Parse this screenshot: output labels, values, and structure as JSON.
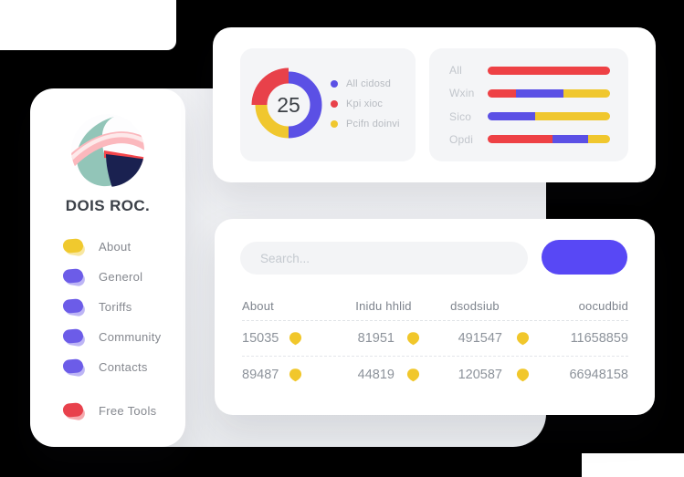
{
  "brand": {
    "name": "DOIS ROC."
  },
  "sidebar": {
    "items": [
      {
        "label": "About",
        "color": "#f0c92e"
      },
      {
        "label": "Generol",
        "color": "#6c5ce8"
      },
      {
        "label": "Toriffs",
        "color": "#6c5ce8"
      },
      {
        "label": "Community",
        "color": "#6c5ce8"
      },
      {
        "label": "Contacts",
        "color": "#6c5ce8"
      }
    ],
    "footer_item": {
      "label": "Free Tools",
      "color": "#e8414c"
    }
  },
  "donut_card": {
    "value": "25",
    "segments": [
      {
        "label": "All cidosd",
        "color": "#5b50e5",
        "pct": 50
      },
      {
        "label": "Kpi xioc",
        "color": "#e8414a",
        "pct": 25
      },
      {
        "label": "Pcifn doinvi",
        "color": "#f0c72e",
        "pct": 25
      }
    ]
  },
  "bars_card": {
    "rows": [
      {
        "label": "All",
        "segments": [
          {
            "color": "#ee4145",
            "width": "100%"
          }
        ]
      },
      {
        "label": "Wxin",
        "segments": [
          {
            "color": "#ee4145",
            "width": "23%"
          },
          {
            "color": "#5b50e5",
            "width": "39%"
          },
          {
            "color": "#f0c72e",
            "width": "38%"
          }
        ]
      },
      {
        "label": "Sico",
        "segments": [
          {
            "color": "#5b50e5",
            "width": "39%"
          },
          {
            "color": "#f0c72e",
            "width": "61%"
          }
        ]
      },
      {
        "label": "Opdi",
        "segments": [
          {
            "color": "#ee4145",
            "width": "53%"
          },
          {
            "color": "#5b50e5",
            "width": "29%"
          },
          {
            "color": "#f0c72e",
            "width": "18%"
          }
        ]
      }
    ]
  },
  "search": {
    "placeholder": "Search..."
  },
  "button": {
    "color": "#5848f5"
  },
  "table": {
    "headers": [
      "About",
      "Inidu hhlid",
      "dsodsiub",
      "oocudbid"
    ],
    "rows": [
      {
        "c1": "15035",
        "c2": "81951",
        "c3": "491547",
        "c4": "11658859"
      },
      {
        "c1": "89487",
        "c2": "44819",
        "c3": "120587",
        "c4": "66948158"
      }
    ],
    "badge_color": "#f1c72b"
  }
}
